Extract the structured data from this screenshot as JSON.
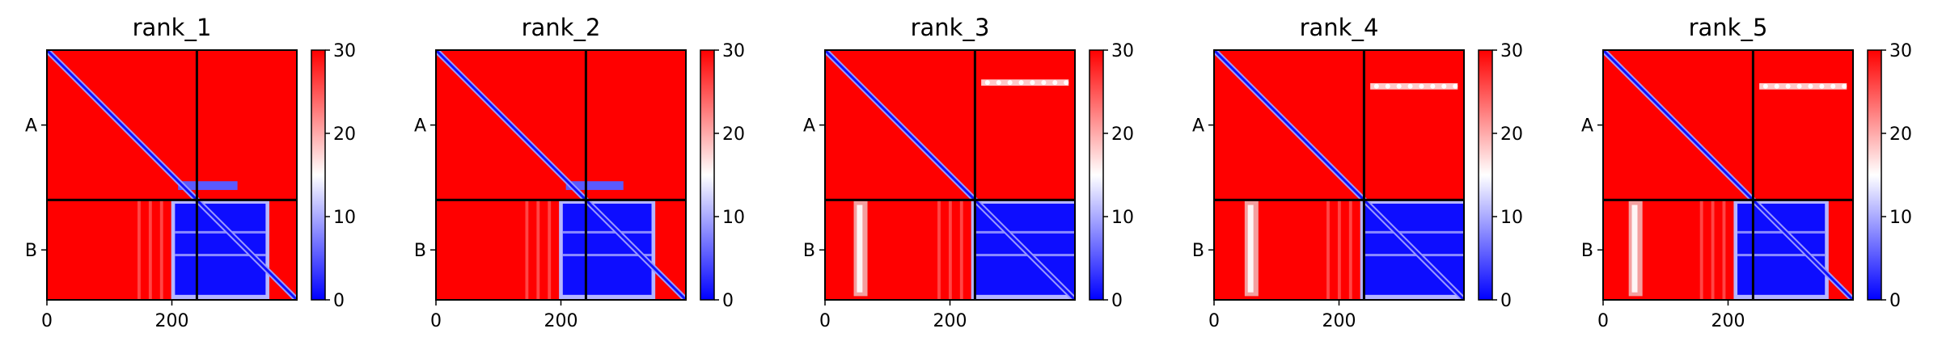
{
  "chart_data": {
    "type": "heatmap",
    "colormap": {
      "name": "bwr",
      "low": "#0000ff",
      "mid": "#ffffff",
      "high": "#ff0000"
    },
    "vmin": 0,
    "vmax": 30,
    "colorbar_ticks": [
      "0",
      "10",
      "20",
      "30"
    ],
    "xlim": [
      0,
      400
    ],
    "xticks": [
      0,
      200
    ],
    "chain_boundary": 240,
    "chain_labels": [
      "A",
      "B"
    ],
    "panels": [
      {
        "title": "rank_1",
        "interface_start": 205,
        "interface_end": 350,
        "a_band_y": null,
        "b_stripe_x": null,
        "a_to_b_band": true
      },
      {
        "title": "rank_2",
        "interface_start": 203,
        "interface_end": 345,
        "a_band_y": null,
        "b_stripe_x": null,
        "a_to_b_band": true
      },
      {
        "title": "rank_3",
        "interface_start": 240,
        "interface_end": 400,
        "a_band_y": 52,
        "b_stripe_x": 55,
        "a_to_b_band": false
      },
      {
        "title": "rank_4",
        "interface_start": 240,
        "interface_end": 400,
        "a_band_y": 58,
        "b_stripe_x": 58,
        "a_to_b_band": false
      },
      {
        "title": "rank_5",
        "interface_start": 215,
        "interface_end": 355,
        "a_band_y": 58,
        "b_stripe_x": 50,
        "a_to_b_band": false
      }
    ]
  }
}
